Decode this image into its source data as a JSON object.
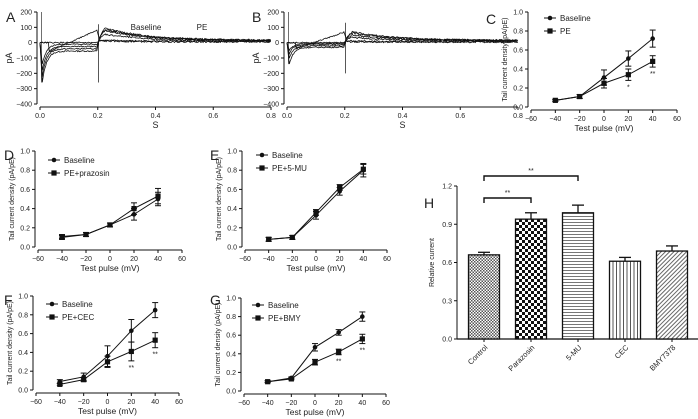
{
  "chart_data": [
    {
      "panel": "A",
      "type": "line",
      "title": "Baseline",
      "xlabel": "S",
      "ylabel": "pA",
      "xlim": [
        0,
        0.8
      ],
      "ylim": [
        -400,
        200
      ],
      "xticks": [
        "0.0",
        "0.2",
        "0.4",
        "0.6",
        "0.8"
      ],
      "yticks": [
        "−400",
        "−300",
        "−200",
        "−100",
        "0",
        "100",
        "200"
      ],
      "xtick_values": [
        0,
        0.2,
        0.4,
        0.6,
        0.8
      ],
      "ytick_values": [
        -400,
        -300,
        -200,
        -100,
        0,
        100,
        200
      ],
      "traces": [
        {
          "step_peak": -260,
          "step_steady": -55,
          "tail_peak": 95,
          "tail_end": 15
        },
        {
          "step_peak": -220,
          "step_steady": -40,
          "tail_peak": 80,
          "tail_end": 12
        },
        {
          "step_peak": -180,
          "step_steady": -25,
          "tail_peak": 55,
          "tail_end": 10
        },
        {
          "step_peak": -140,
          "step_steady": -10,
          "tail_peak": 15,
          "tail_end": 8
        },
        {
          "step_peak": 0,
          "step_steady": 0,
          "tail_peak": 10,
          "tail_end": 5
        },
        {
          "ramp_from": -60,
          "ramp_to": 85,
          "tail_peak": 85,
          "tail_end": 14
        }
      ]
    },
    {
      "panel": "B",
      "type": "line",
      "title": "PE",
      "xlabel": "S",
      "ylabel": "pA",
      "xlim": [
        0,
        0.8
      ],
      "ylim": [
        -400,
        200
      ],
      "xticks": [
        "0.0",
        "0.2",
        "0.4",
        "0.6",
        "0.8"
      ],
      "yticks": [
        "−400",
        "−300",
        "−200",
        "−100",
        "0",
        "100",
        "200"
      ],
      "xtick_values": [
        0,
        0.2,
        0.4,
        0.6,
        0.8
      ],
      "ytick_values": [
        -400,
        -300,
        -200,
        -100,
        0,
        100,
        200
      ],
      "traces": [
        {
          "step_peak": -140,
          "step_steady": -30,
          "tail_peak": 65,
          "tail_end": 15
        },
        {
          "step_peak": -100,
          "step_steady": -20,
          "tail_peak": 50,
          "tail_end": 12
        },
        {
          "step_peak": -70,
          "step_steady": -10,
          "tail_peak": 35,
          "tail_end": 10
        },
        {
          "step_peak": -50,
          "step_steady": -5,
          "tail_peak": 10,
          "tail_end": 6
        },
        {
          "step_peak": 0,
          "step_steady": 0,
          "tail_peak": 5,
          "tail_end": 4
        },
        {
          "ramp_from": -40,
          "ramp_to": 70,
          "tail_peak": 70,
          "tail_end": 14
        }
      ]
    },
    {
      "panel": "C",
      "type": "line",
      "xlabel": "Test pulse (mV)",
      "ylabel": "Tail current density (pA/pE)",
      "xlim": [
        -60,
        60
      ],
      "ylim": [
        0,
        1.0
      ],
      "xticks": [
        "−60",
        "−40",
        "−20",
        "0",
        "20",
        "40",
        "60"
      ],
      "xtick_values": [
        -60,
        -40,
        -20,
        0,
        20,
        40,
        60
      ],
      "yticks": [
        "0.0",
        "0.2",
        "0.4",
        "0.6",
        "0.8",
        "1.0"
      ],
      "ytick_values": [
        0,
        0.2,
        0.4,
        0.6,
        0.8,
        1.0
      ],
      "x": [
        -40,
        -20,
        0,
        20,
        40
      ],
      "series": [
        {
          "name": "Baseline",
          "marker": "circle",
          "values": [
            0.07,
            0.11,
            0.31,
            0.51,
            0.72
          ],
          "errors": [
            0.01,
            0.02,
            0.08,
            0.08,
            0.09
          ]
        },
        {
          "name": "PE",
          "marker": "square",
          "values": [
            0.07,
            0.11,
            0.25,
            0.34,
            0.48
          ],
          "errors": [
            0.01,
            0.02,
            0.05,
            0.06,
            0.06
          ]
        }
      ],
      "annotations": [
        {
          "x": 20,
          "text": "*"
        },
        {
          "x": 40,
          "text": "**"
        }
      ]
    },
    {
      "panel": "D",
      "type": "line",
      "xlabel": "Test pulse (mV)",
      "ylabel": "Tail current density (pA/pE)",
      "xlim": [
        -60,
        60
      ],
      "ylim": [
        0,
        1.0
      ],
      "xticks": [
        "−60",
        "−40",
        "−20",
        "0",
        "20",
        "40",
        "60"
      ],
      "xtick_values": [
        -60,
        -40,
        -20,
        0,
        20,
        40,
        60
      ],
      "yticks": [
        "0.0",
        "0.2",
        "0.4",
        "0.6",
        "0.8",
        "1.0"
      ],
      "ytick_values": [
        0,
        0.2,
        0.4,
        0.6,
        0.8,
        1.0
      ],
      "x": [
        -40,
        -20,
        0,
        20,
        40
      ],
      "series": [
        {
          "name": "Baseline",
          "marker": "circle",
          "values": [
            0.11,
            0.13,
            0.23,
            0.34,
            0.5
          ],
          "errors": [
            0.02,
            0.02,
            0.02,
            0.06,
            0.07
          ]
        },
        {
          "name": "PE+prazosin",
          "marker": "square",
          "values": [
            0.1,
            0.13,
            0.23,
            0.4,
            0.53
          ],
          "errors": [
            0.02,
            0.02,
            0.02,
            0.06,
            0.08
          ]
        }
      ],
      "annotations": []
    },
    {
      "panel": "E",
      "type": "line",
      "xlabel": "Test pulse (mV)",
      "ylabel": "Tail current density (pA/pE)",
      "xlim": [
        -60,
        60
      ],
      "ylim": [
        0,
        1.0
      ],
      "xticks": [
        "−60",
        "−40",
        "−20",
        "0",
        "20",
        "40",
        "60"
      ],
      "xtick_values": [
        -60,
        -40,
        -20,
        0,
        20,
        40,
        60
      ],
      "yticks": [
        "0.0",
        "0.2",
        "0.4",
        "0.6",
        "0.8",
        "1.0"
      ],
      "ytick_values": [
        0,
        0.2,
        0.4,
        0.6,
        0.8,
        1.0
      ],
      "x": [
        -40,
        -20,
        0,
        20,
        40
      ],
      "series": [
        {
          "name": "Baseline",
          "marker": "circle",
          "values": [
            0.08,
            0.1,
            0.33,
            0.58,
            0.8
          ],
          "errors": [
            0.02,
            0.02,
            0.04,
            0.04,
            0.07
          ]
        },
        {
          "name": "PE+5-MU",
          "marker": "square",
          "values": [
            0.08,
            0.1,
            0.36,
            0.62,
            0.81
          ],
          "errors": [
            0.02,
            0.02,
            0.03,
            0.03,
            0.05
          ]
        }
      ],
      "annotations": []
    },
    {
      "panel": "F",
      "type": "line",
      "xlabel": "Test pulse (mV)",
      "ylabel": "Tail current density (pA/pE)",
      "xlim": [
        -60,
        60
      ],
      "ylim": [
        0,
        1.0
      ],
      "xticks": [
        "−60",
        "−40",
        "−20",
        "0",
        "20",
        "40",
        "60"
      ],
      "xtick_values": [
        -60,
        -40,
        -20,
        0,
        20,
        40,
        60
      ],
      "yticks": [
        "0.0",
        "0.2",
        "0.4",
        "0.6",
        "0.8",
        "1.0"
      ],
      "ytick_values": [
        0,
        0.2,
        0.4,
        0.6,
        0.8,
        1.0
      ],
      "x": [
        -40,
        -20,
        0,
        20,
        40
      ],
      "series": [
        {
          "name": "Baseline",
          "marker": "circle",
          "values": [
            0.09,
            0.14,
            0.36,
            0.63,
            0.85
          ],
          "errors": [
            0.02,
            0.04,
            0.11,
            0.12,
            0.08
          ]
        },
        {
          "name": "PE+CEC",
          "marker": "square",
          "values": [
            0.06,
            0.11,
            0.3,
            0.41,
            0.53
          ],
          "errors": [
            0.01,
            0.02,
            0.06,
            0.1,
            0.08
          ]
        }
      ],
      "annotations": [
        {
          "x": 20,
          "text": "**"
        },
        {
          "x": 40,
          "text": "**"
        }
      ]
    },
    {
      "panel": "G",
      "type": "line",
      "xlabel": "Test pulse (mV)",
      "ylabel": "Tail current density (pA/pE)",
      "xlim": [
        -60,
        60
      ],
      "ylim": [
        0,
        1.0
      ],
      "xticks": [
        "−60",
        "−40",
        "−20",
        "0",
        "20",
        "40",
        "60"
      ],
      "xtick_values": [
        -60,
        -40,
        -20,
        0,
        20,
        40,
        60
      ],
      "yticks": [
        "0.0",
        "0.2",
        "0.4",
        "0.6",
        "0.8",
        "1.0"
      ],
      "ytick_values": [
        0,
        0.2,
        0.4,
        0.6,
        0.8,
        1.0
      ],
      "x": [
        -40,
        -20,
        0,
        20,
        40
      ],
      "series": [
        {
          "name": "Baseline",
          "marker": "circle",
          "values": [
            0.1,
            0.14,
            0.47,
            0.63,
            0.8
          ],
          "errors": [
            0.01,
            0.01,
            0.04,
            0.03,
            0.05
          ]
        },
        {
          "name": "PE+BMY",
          "marker": "square",
          "values": [
            0.1,
            0.13,
            0.31,
            0.42,
            0.56
          ],
          "errors": [
            0.01,
            0.01,
            0.03,
            0.03,
            0.05
          ]
        }
      ],
      "annotations": [
        {
          "x": 20,
          "text": "**"
        },
        {
          "x": 40,
          "text": "**"
        }
      ]
    },
    {
      "panel": "H",
      "type": "bar",
      "xlabel": "",
      "ylabel": "Relative current",
      "ylim": [
        0,
        1.2
      ],
      "yticks": [
        "0.0",
        "0.3",
        "0.6",
        "0.9",
        "1.2"
      ],
      "ytick_values": [
        0,
        0.3,
        0.6,
        0.9,
        1.2
      ],
      "categories": [
        "Control",
        "Parazosin",
        "5-MU",
        "CEC",
        "BMY7378"
      ],
      "values": [
        0.66,
        0.94,
        0.99,
        0.61,
        0.69
      ],
      "errors": [
        0.02,
        0.05,
        0.06,
        0.03,
        0.04
      ],
      "patterns": [
        "fine-check",
        "checker",
        "horizontal",
        "vertical",
        "diagonal"
      ],
      "significance": [
        {
          "from": "Control",
          "to": "Parazosin",
          "text": "**"
        },
        {
          "from": "Control",
          "to": "5-MU",
          "text": "**"
        }
      ]
    }
  ],
  "colors": {
    "ink": "#111111",
    "axis": "#333333"
  }
}
